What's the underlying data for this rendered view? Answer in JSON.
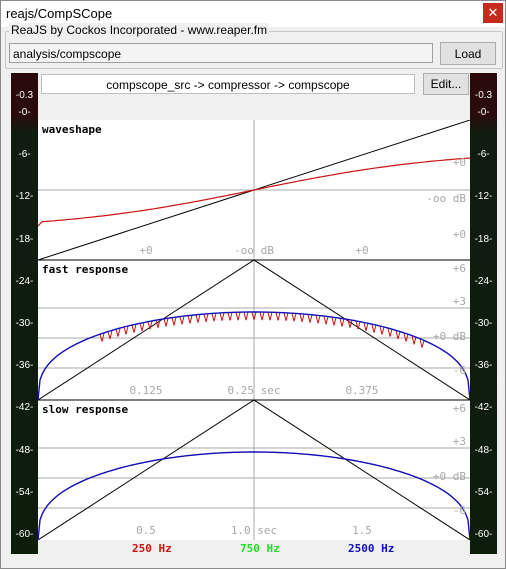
{
  "window": {
    "title": "reajs/CompSCope",
    "close_glyph": "✕"
  },
  "header": {
    "group_label": "ReaJS by Cockos Incorporated - www.reaper.fm",
    "path_value": "analysis/compscope",
    "load_label": "Load",
    "route_text": "compscope_src -> compressor -> compscope",
    "edit_label": "Edit..."
  },
  "meters": {
    "peak_left": "-0.3",
    "peak_right": "-0.3",
    "ticks": [
      "-0-",
      "-6-",
      "-12-",
      "-18-",
      "-24-",
      "-30-",
      "-36-",
      "-42-",
      "-48-",
      "-54-",
      "-60-"
    ]
  },
  "scope": {
    "panels": [
      {
        "title": "waveshape",
        "right_labels": [
          "+0",
          "-oo dB",
          "+0"
        ],
        "bottom_labels": [
          "+0",
          "-oo dB",
          "+0"
        ]
      },
      {
        "title": "fast response",
        "right_labels": [
          "+6",
          "+3",
          "+0 dB",
          "-6"
        ],
        "bottom_labels": [
          "0.125",
          "0.25 sec",
          "0.375"
        ]
      },
      {
        "title": "slow response",
        "right_labels": [
          "+6",
          "+3",
          "+0 dB",
          "-6"
        ],
        "bottom_labels": [
          "0.5",
          "1.0 sec",
          "1.5"
        ]
      }
    ],
    "colors": {
      "red": "#cc1111",
      "blue": "#1111bb",
      "green": "#22dd22",
      "grid": "#a8a8a8",
      "reference": "#000000"
    }
  },
  "legend": {
    "items": [
      {
        "label": "250 Hz",
        "color": "#cc1111"
      },
      {
        "label": "750 Hz",
        "color": "#22dd22"
      },
      {
        "label": "2500 Hz",
        "color": "#1111bb"
      }
    ]
  }
}
